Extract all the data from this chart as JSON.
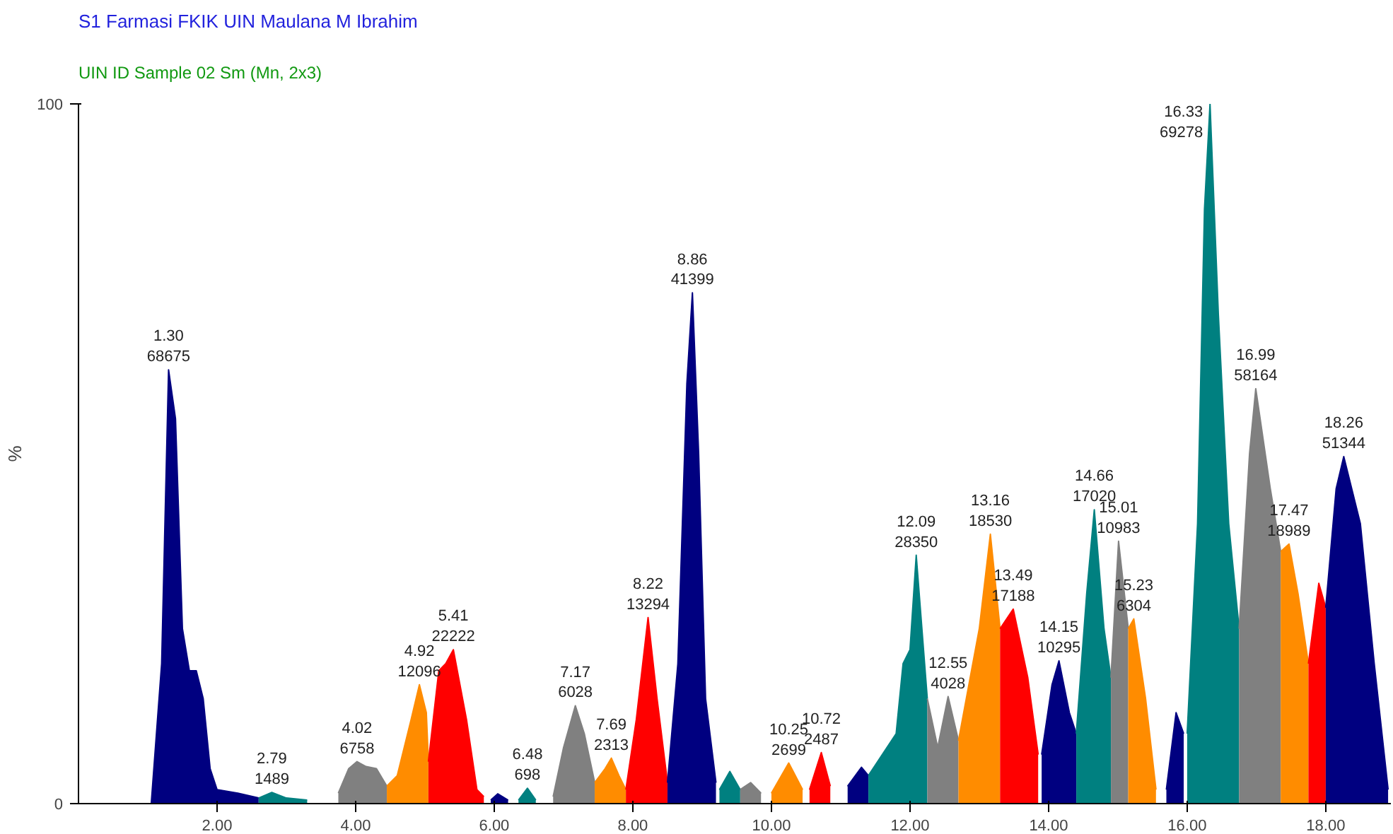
{
  "chart_data": {
    "type": "area",
    "title": "S1 Farmasi FKIK UIN Maulana M Ibrahim",
    "subtitle": "UIN ID Sample 02 Sm (Mn, 2x3)",
    "ylabel": "%",
    "xlim": [
      0,
      18.94
    ],
    "ylim": [
      0,
      100
    ],
    "xticks": [
      {
        "value": 2,
        "label": "2.00"
      },
      {
        "value": 4,
        "label": "4.00"
      },
      {
        "value": 6,
        "label": "6.00"
      },
      {
        "value": 8,
        "label": "8.00"
      },
      {
        "value": 10,
        "label": "10.00"
      },
      {
        "value": 12,
        "label": "12.00"
      },
      {
        "value": 14,
        "label": "14.00"
      },
      {
        "value": 16,
        "label": "16.00"
      },
      {
        "value": 18,
        "label": "18.00"
      }
    ],
    "yticks": [
      0,
      100
    ],
    "grid": false,
    "series": [
      {
        "color": "#000080",
        "x": [
          1.05,
          1.2,
          1.3,
          1.4,
          1.5,
          1.6,
          1.7,
          1.8,
          1.9,
          2.0,
          2.3,
          2.6
        ],
        "values": [
          0,
          20,
          62,
          55,
          25,
          19,
          19,
          15,
          5,
          2,
          1.5,
          0.8
        ]
      },
      {
        "color": "#008080",
        "x": [
          2.6,
          2.79,
          3.0,
          3.3
        ],
        "values": [
          0.8,
          1.6,
          0.8,
          0.5
        ]
      },
      {
        "color": "#808080",
        "x": [
          3.75,
          3.9,
          4.02,
          4.15,
          4.3,
          4.45
        ],
        "values": [
          1.5,
          5,
          6,
          5.3,
          5,
          2.5
        ]
      },
      {
        "color": "#ff8c00",
        "x": [
          4.45,
          4.6,
          4.8,
          4.92,
          5.02,
          5.05
        ],
        "values": [
          2.5,
          4,
          12,
          17,
          13,
          6
        ]
      },
      {
        "color": "#ff0000",
        "x": [
          5.05,
          5.2,
          5.3,
          5.41,
          5.6,
          5.75,
          5.85
        ],
        "values": [
          6,
          19,
          20,
          22,
          12,
          2,
          1
        ]
      },
      {
        "color": "#000080",
        "x": [
          5.95,
          6.05,
          6.2
        ],
        "values": [
          0.5,
          1.4,
          0.5
        ]
      },
      {
        "color": "#008080",
        "x": [
          6.35,
          6.48,
          6.6
        ],
        "values": [
          0.5,
          2.2,
          0.5
        ]
      },
      {
        "color": "#808080",
        "x": [
          6.85,
          7.0,
          7.17,
          7.3,
          7.45
        ],
        "values": [
          1,
          8,
          14,
          10,
          3
        ]
      },
      {
        "color": "#ff8c00",
        "x": [
          7.45,
          7.6,
          7.69,
          7.8,
          7.9
        ],
        "values": [
          3,
          5,
          6.5,
          4,
          2
        ]
      },
      {
        "color": "#ff0000",
        "x": [
          7.9,
          8.05,
          8.22,
          8.35,
          8.5
        ],
        "values": [
          2,
          12,
          26.6,
          15,
          3
        ]
      },
      {
        "color": "#000080",
        "x": [
          8.5,
          8.65,
          8.78,
          8.86,
          8.95,
          9.05,
          9.2
        ],
        "values": [
          3,
          20,
          60,
          73,
          50,
          15,
          3
        ]
      },
      {
        "color": "#008080",
        "x": [
          9.25,
          9.4,
          9.55
        ],
        "values": [
          2,
          4.6,
          2
        ]
      },
      {
        "color": "#808080",
        "x": [
          9.55,
          9.7,
          9.85
        ],
        "values": [
          2,
          3,
          1.5
        ]
      },
      {
        "color": "#ff8c00",
        "x": [
          10.0,
          10.25,
          10.45
        ],
        "values": [
          1.5,
          5.8,
          2
        ]
      },
      {
        "color": "#ff0000",
        "x": [
          10.55,
          10.72,
          10.85
        ],
        "values": [
          2,
          7.3,
          2.5
        ]
      },
      {
        "color": "#000080",
        "x": [
          11.1,
          11.3,
          11.4
        ],
        "values": [
          2.5,
          5.2,
          4
        ]
      },
      {
        "color": "#008080",
        "x": [
          11.4,
          11.8,
          11.9,
          12.0,
          12.09,
          12.25
        ],
        "values": [
          4,
          10,
          20,
          22,
          35.5,
          15
        ]
      },
      {
        "color": "#808080",
        "x": [
          12.25,
          12.4,
          12.55,
          12.7
        ],
        "values": [
          15,
          8,
          15.3,
          9
        ]
      },
      {
        "color": "#ff8c00",
        "x": [
          12.7,
          13.0,
          13.16,
          13.3
        ],
        "values": [
          9,
          25,
          38.5,
          25
        ]
      },
      {
        "color": "#ff0000",
        "x": [
          13.3,
          13.49,
          13.7,
          13.85
        ],
        "values": [
          25,
          27.8,
          18,
          7
        ]
      },
      {
        "color": "#000080",
        "x": [
          13.9,
          14.05,
          14.15,
          14.3,
          14.4
        ],
        "values": [
          7,
          17,
          20.4,
          13,
          10
        ]
      },
      {
        "color": "#008080",
        "x": [
          14.4,
          14.55,
          14.66,
          14.8,
          14.9
        ],
        "values": [
          10,
          30,
          42,
          25,
          18
        ]
      },
      {
        "color": "#808080",
        "x": [
          14.9,
          15.01,
          15.15
        ],
        "values": [
          18,
          37.5,
          25
        ]
      },
      {
        "color": "#ff8c00",
        "x": [
          15.15,
          15.23,
          15.4,
          15.55
        ],
        "values": [
          25,
          26.4,
          15,
          2
        ]
      },
      {
        "color": "#000080",
        "x": [
          15.7,
          15.84,
          15.95
        ],
        "values": [
          2,
          13,
          10
        ]
      },
      {
        "color": "#008080",
        "x": [
          16.0,
          16.15,
          16.25,
          16.33,
          16.45,
          16.6,
          16.75
        ],
        "values": [
          10,
          40,
          85,
          100,
          70,
          40,
          25
        ]
      },
      {
        "color": "#808080",
        "x": [
          16.75,
          16.9,
          16.99,
          17.2,
          17.35
        ],
        "values": [
          25,
          50,
          59.3,
          45,
          36
        ]
      },
      {
        "color": "#ff8c00",
        "x": [
          17.35,
          17.47,
          17.6,
          17.75
        ],
        "values": [
          36,
          37.1,
          30,
          20
        ]
      },
      {
        "color": "#ff0000",
        "x": [
          17.75,
          17.9,
          18.0
        ],
        "values": [
          20,
          31.5,
          28
        ]
      },
      {
        "color": "#000080",
        "x": [
          18.0,
          18.15,
          18.26,
          18.5,
          18.7,
          18.9
        ],
        "values": [
          28,
          45,
          49.6,
          40,
          20,
          2
        ]
      }
    ],
    "annotations": [
      {
        "text": "1.30\n68675",
        "x": 1.3,
        "y": 62
      },
      {
        "text": "2.79\n1489",
        "x": 2.79,
        "y": 1.6
      },
      {
        "text": "4.02\n6758",
        "x": 4.02,
        "y": 6
      },
      {
        "text": "4.92\n12096",
        "x": 4.92,
        "y": 17
      },
      {
        "text": "5.41\n22222",
        "x": 5.41,
        "y": 22
      },
      {
        "text": "6.48\n698",
        "x": 6.48,
        "y": 2.2
      },
      {
        "text": "7.17\n6028",
        "x": 7.17,
        "y": 14
      },
      {
        "text": "7.69\n2313",
        "x": 7.69,
        "y": 6.5
      },
      {
        "text": "8.22\n13294",
        "x": 8.22,
        "y": 26.6
      },
      {
        "text": "8.86\n41399",
        "x": 8.86,
        "y": 73
      },
      {
        "text": "10.25\n2699",
        "x": 10.25,
        "y": 5.8
      },
      {
        "text": "10.72\n2487",
        "x": 10.72,
        "y": 7.3
      },
      {
        "text": "12.09\n28350",
        "x": 12.09,
        "y": 35.5
      },
      {
        "text": "12.55\n4028",
        "x": 12.55,
        "y": 15.3
      },
      {
        "text": "13.16\n18530",
        "x": 13.16,
        "y": 38.5
      },
      {
        "text": "13.49\n17188",
        "x": 13.49,
        "y": 27.8
      },
      {
        "text": "14.15\n10295",
        "x": 14.15,
        "y": 20.4
      },
      {
        "text": "14.66\n17020",
        "x": 14.66,
        "y": 42
      },
      {
        "text": "15.01\n10983",
        "x": 15.01,
        "y": 37.5
      },
      {
        "text": "15.23\n6304",
        "x": 15.23,
        "y": 26.4
      },
      {
        "text": "16.33\n69278",
        "x": 16.33,
        "y": 100
      },
      {
        "text": "16.99\n58164",
        "x": 16.99,
        "y": 59.3
      },
      {
        "text": "17.47\n18989",
        "x": 17.47,
        "y": 37.1
      },
      {
        "text": "18.26\n51344",
        "x": 18.26,
        "y": 49.6
      }
    ]
  }
}
